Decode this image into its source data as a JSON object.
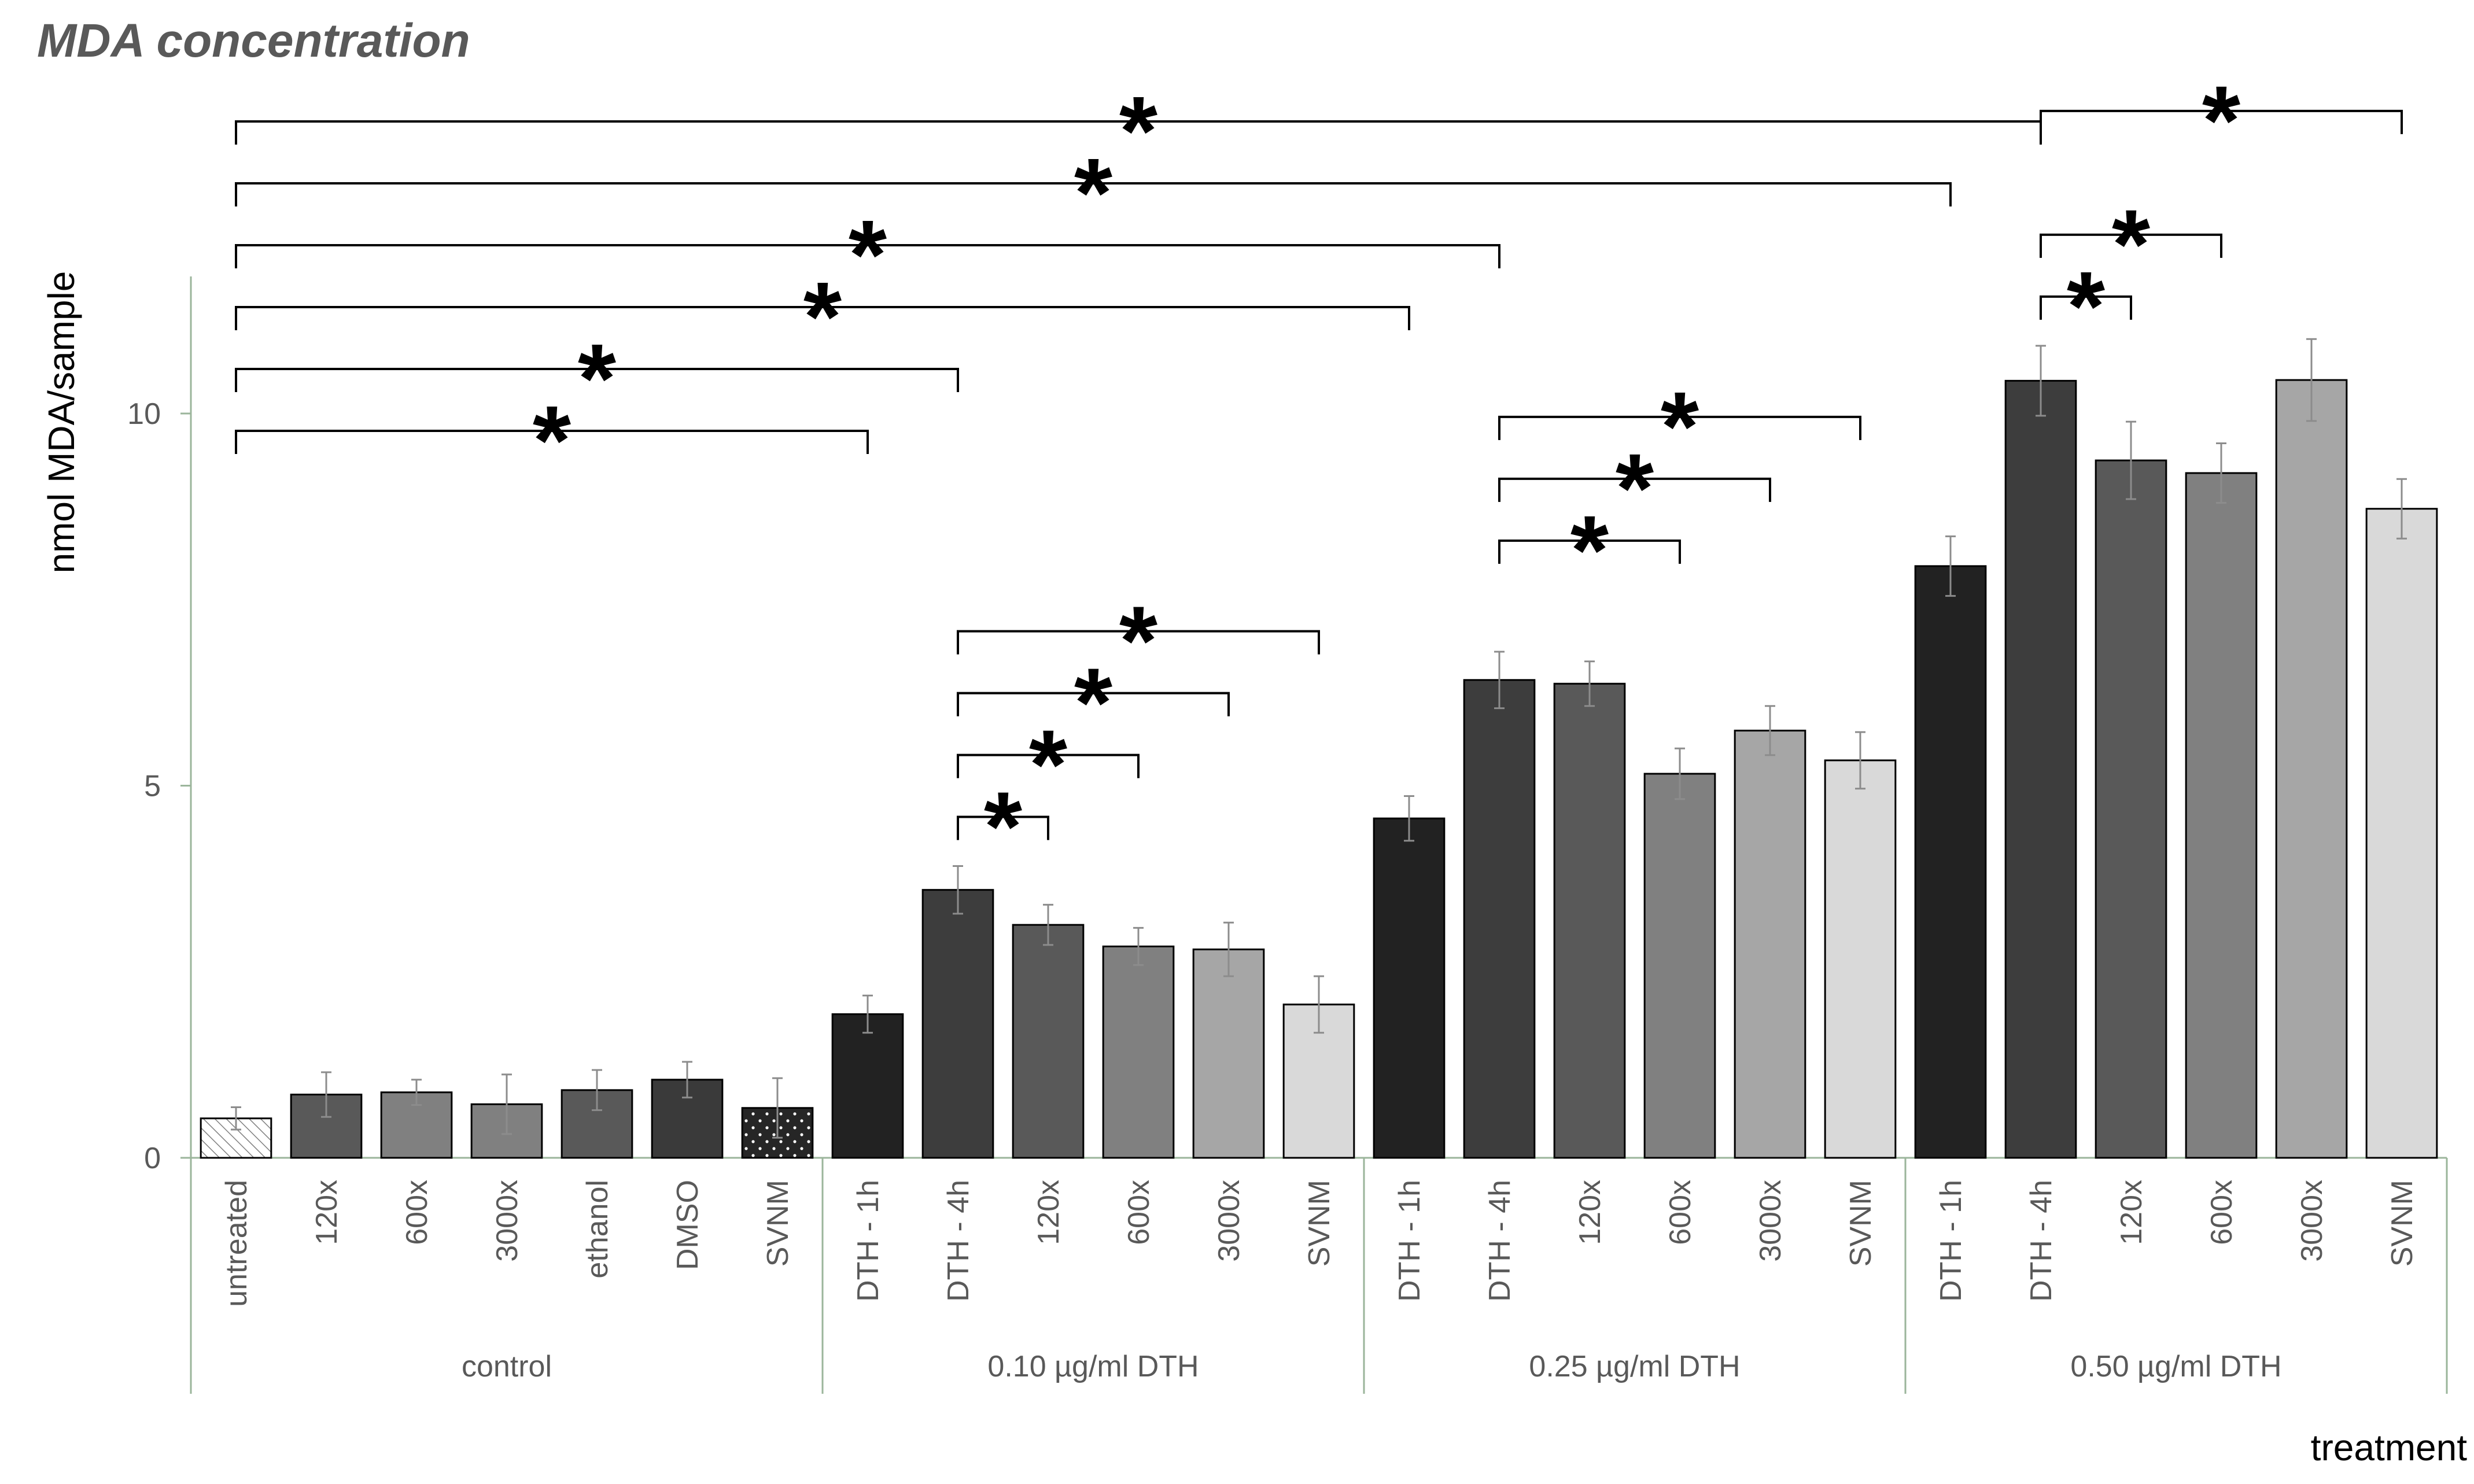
{
  "chart_data": {
    "type": "bar",
    "title": "MDA concentration",
    "ylabel": "nmol MDA/sample",
    "xlabel": "treatment",
    "ylim": [
      0,
      12
    ],
    "yticks": [
      0,
      5,
      10
    ],
    "groups": [
      {
        "label": "control",
        "start": 0,
        "end": 6
      },
      {
        "label": "0.10 µg/ml DTH",
        "start": 7,
        "end": 12
      },
      {
        "label": "0.25 µg/ml DTH",
        "start": 13,
        "end": 18
      },
      {
        "label": "0.50 µg/ml DTH",
        "start": 19,
        "end": 24
      }
    ],
    "bars": [
      {
        "label": "untreated",
        "value": 0.53,
        "error": 0.15,
        "color": "#ffffff",
        "pattern": "hatch"
      },
      {
        "label": "120x",
        "value": 0.85,
        "error": 0.3,
        "color": "#595959"
      },
      {
        "label": "600x",
        "value": 0.88,
        "error": 0.17,
        "color": "#808080"
      },
      {
        "label": "3000x",
        "value": 0.72,
        "error": 0.4,
        "color": "#808080"
      },
      {
        "label": "ethanol",
        "value": 0.91,
        "error": 0.27,
        "color": "#595959"
      },
      {
        "label": "DMSO",
        "value": 1.05,
        "error": 0.24,
        "color": "#3a3a3a"
      },
      {
        "label": "SVNM",
        "value": 0.67,
        "error": 0.4,
        "color": "#262626",
        "pattern": "dots"
      },
      {
        "label": "DTH - 1h",
        "value": 1.93,
        "error": 0.25,
        "color": "#222222"
      },
      {
        "label": "DTH - 4h",
        "value": 3.6,
        "error": 0.32,
        "color": "#3d3d3d"
      },
      {
        "label": "120x",
        "value": 3.13,
        "error": 0.27,
        "color": "#595959"
      },
      {
        "label": "600x",
        "value": 2.84,
        "error": 0.25,
        "color": "#808080"
      },
      {
        "label": "3000x",
        "value": 2.8,
        "error": 0.36,
        "color": "#a6a6a6"
      },
      {
        "label": "SVNM",
        "value": 2.06,
        "error": 0.38,
        "color": "#d9d9d9"
      },
      {
        "label": "DTH - 1h",
        "value": 4.56,
        "error": 0.3,
        "color": "#222222"
      },
      {
        "label": "DTH - 4h",
        "value": 6.42,
        "error": 0.38,
        "color": "#3d3d3d"
      },
      {
        "label": "120x",
        "value": 6.37,
        "error": 0.3,
        "color": "#595959"
      },
      {
        "label": "600x",
        "value": 5.16,
        "error": 0.34,
        "color": "#808080"
      },
      {
        "label": "3000x",
        "value": 5.74,
        "error": 0.33,
        "color": "#a6a6a6"
      },
      {
        "label": "SVNM",
        "value": 5.34,
        "error": 0.38,
        "color": "#d9d9d9"
      },
      {
        "label": "DTH - 1h",
        "value": 7.95,
        "error": 0.4,
        "color": "#222222"
      },
      {
        "label": "DTH - 4h",
        "value": 10.44,
        "error": 0.47,
        "color": "#3d3d3d"
      },
      {
        "label": "120x",
        "value": 9.37,
        "error": 0.52,
        "color": "#595959"
      },
      {
        "label": "600x",
        "value": 9.2,
        "error": 0.4,
        "color": "#808080"
      },
      {
        "label": "3000x",
        "value": 10.45,
        "error": 0.55,
        "color": "#a6a6a6"
      },
      {
        "label": "SVNM",
        "value": 8.72,
        "error": 0.4,
        "color": "#d9d9d9"
      }
    ],
    "significance_marker": "*",
    "significance": [
      {
        "from": 0,
        "to": 20
      },
      {
        "from": 0,
        "to": 19
      },
      {
        "from": 0,
        "to": 14
      },
      {
        "from": 0,
        "to": 13
      },
      {
        "from": 0,
        "to": 8
      },
      {
        "from": 0,
        "to": 7
      },
      {
        "from": 8,
        "to": 12
      },
      {
        "from": 8,
        "to": 11
      },
      {
        "from": 8,
        "to": 10
      },
      {
        "from": 8,
        "to": 9
      },
      {
        "from": 14,
        "to": 18
      },
      {
        "from": 14,
        "to": 17
      },
      {
        "from": 14,
        "to": 16
      },
      {
        "from": 20,
        "to": 24
      },
      {
        "from": 20,
        "to": 22
      },
      {
        "from": 20,
        "to": 21
      }
    ]
  }
}
